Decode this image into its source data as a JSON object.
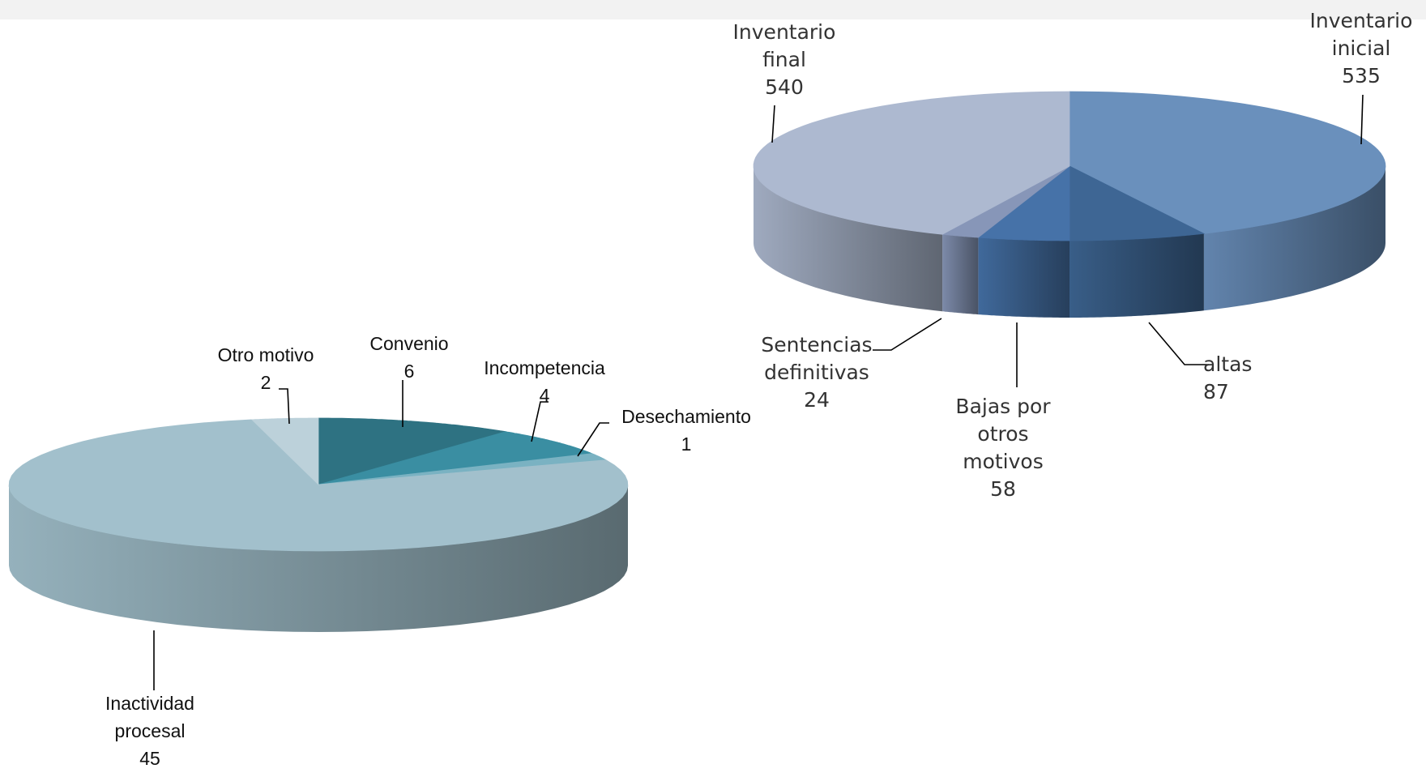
{
  "chart_data": [
    {
      "type": "pie",
      "style": "3d",
      "series": [
        {
          "values": [
            535,
            87,
            58,
            24,
            540
          ],
          "categories": [
            "Inventario inicial",
            "altas",
            "Bajas por otros motivos",
            "Sentencias definitivas",
            "Inventario final"
          ],
          "label_lines": [
            [
              "Inventario",
              "inicial",
              "535"
            ],
            [
              "altas",
              "87"
            ],
            [
              "Bajas por",
              "otros",
              "motivos",
              "58"
            ],
            [
              "Sentencias",
              "definitivas",
              "24"
            ],
            [
              "Inventario",
              "final",
              "540"
            ]
          ],
          "colors": [
            "#6a90bc",
            "#3e6694",
            "#4672a8",
            "#8796b8",
            "#adb9d0"
          ]
        }
      ]
    },
    {
      "type": "pie",
      "style": "3d",
      "series": [
        {
          "values": [
            6,
            4,
            1,
            45,
            2
          ],
          "categories": [
            "Convenio",
            "Incompetencia",
            "Desechamiento",
            "Inactividad procesal",
            "Otro motivo"
          ],
          "label_lines": [
            [
              "Convenio",
              "6"
            ],
            [
              "Incompetencia",
              "4"
            ],
            [
              "Desechamiento",
              "1"
            ],
            [
              "Inactividad",
              "procesal",
              "45"
            ],
            [
              "Otro motivo",
              "2"
            ]
          ],
          "colors": [
            "#2e7282",
            "#3a8ea2",
            "#7ab2c2",
            "#a2c0cc",
            "#bcd1da"
          ]
        }
      ]
    }
  ]
}
